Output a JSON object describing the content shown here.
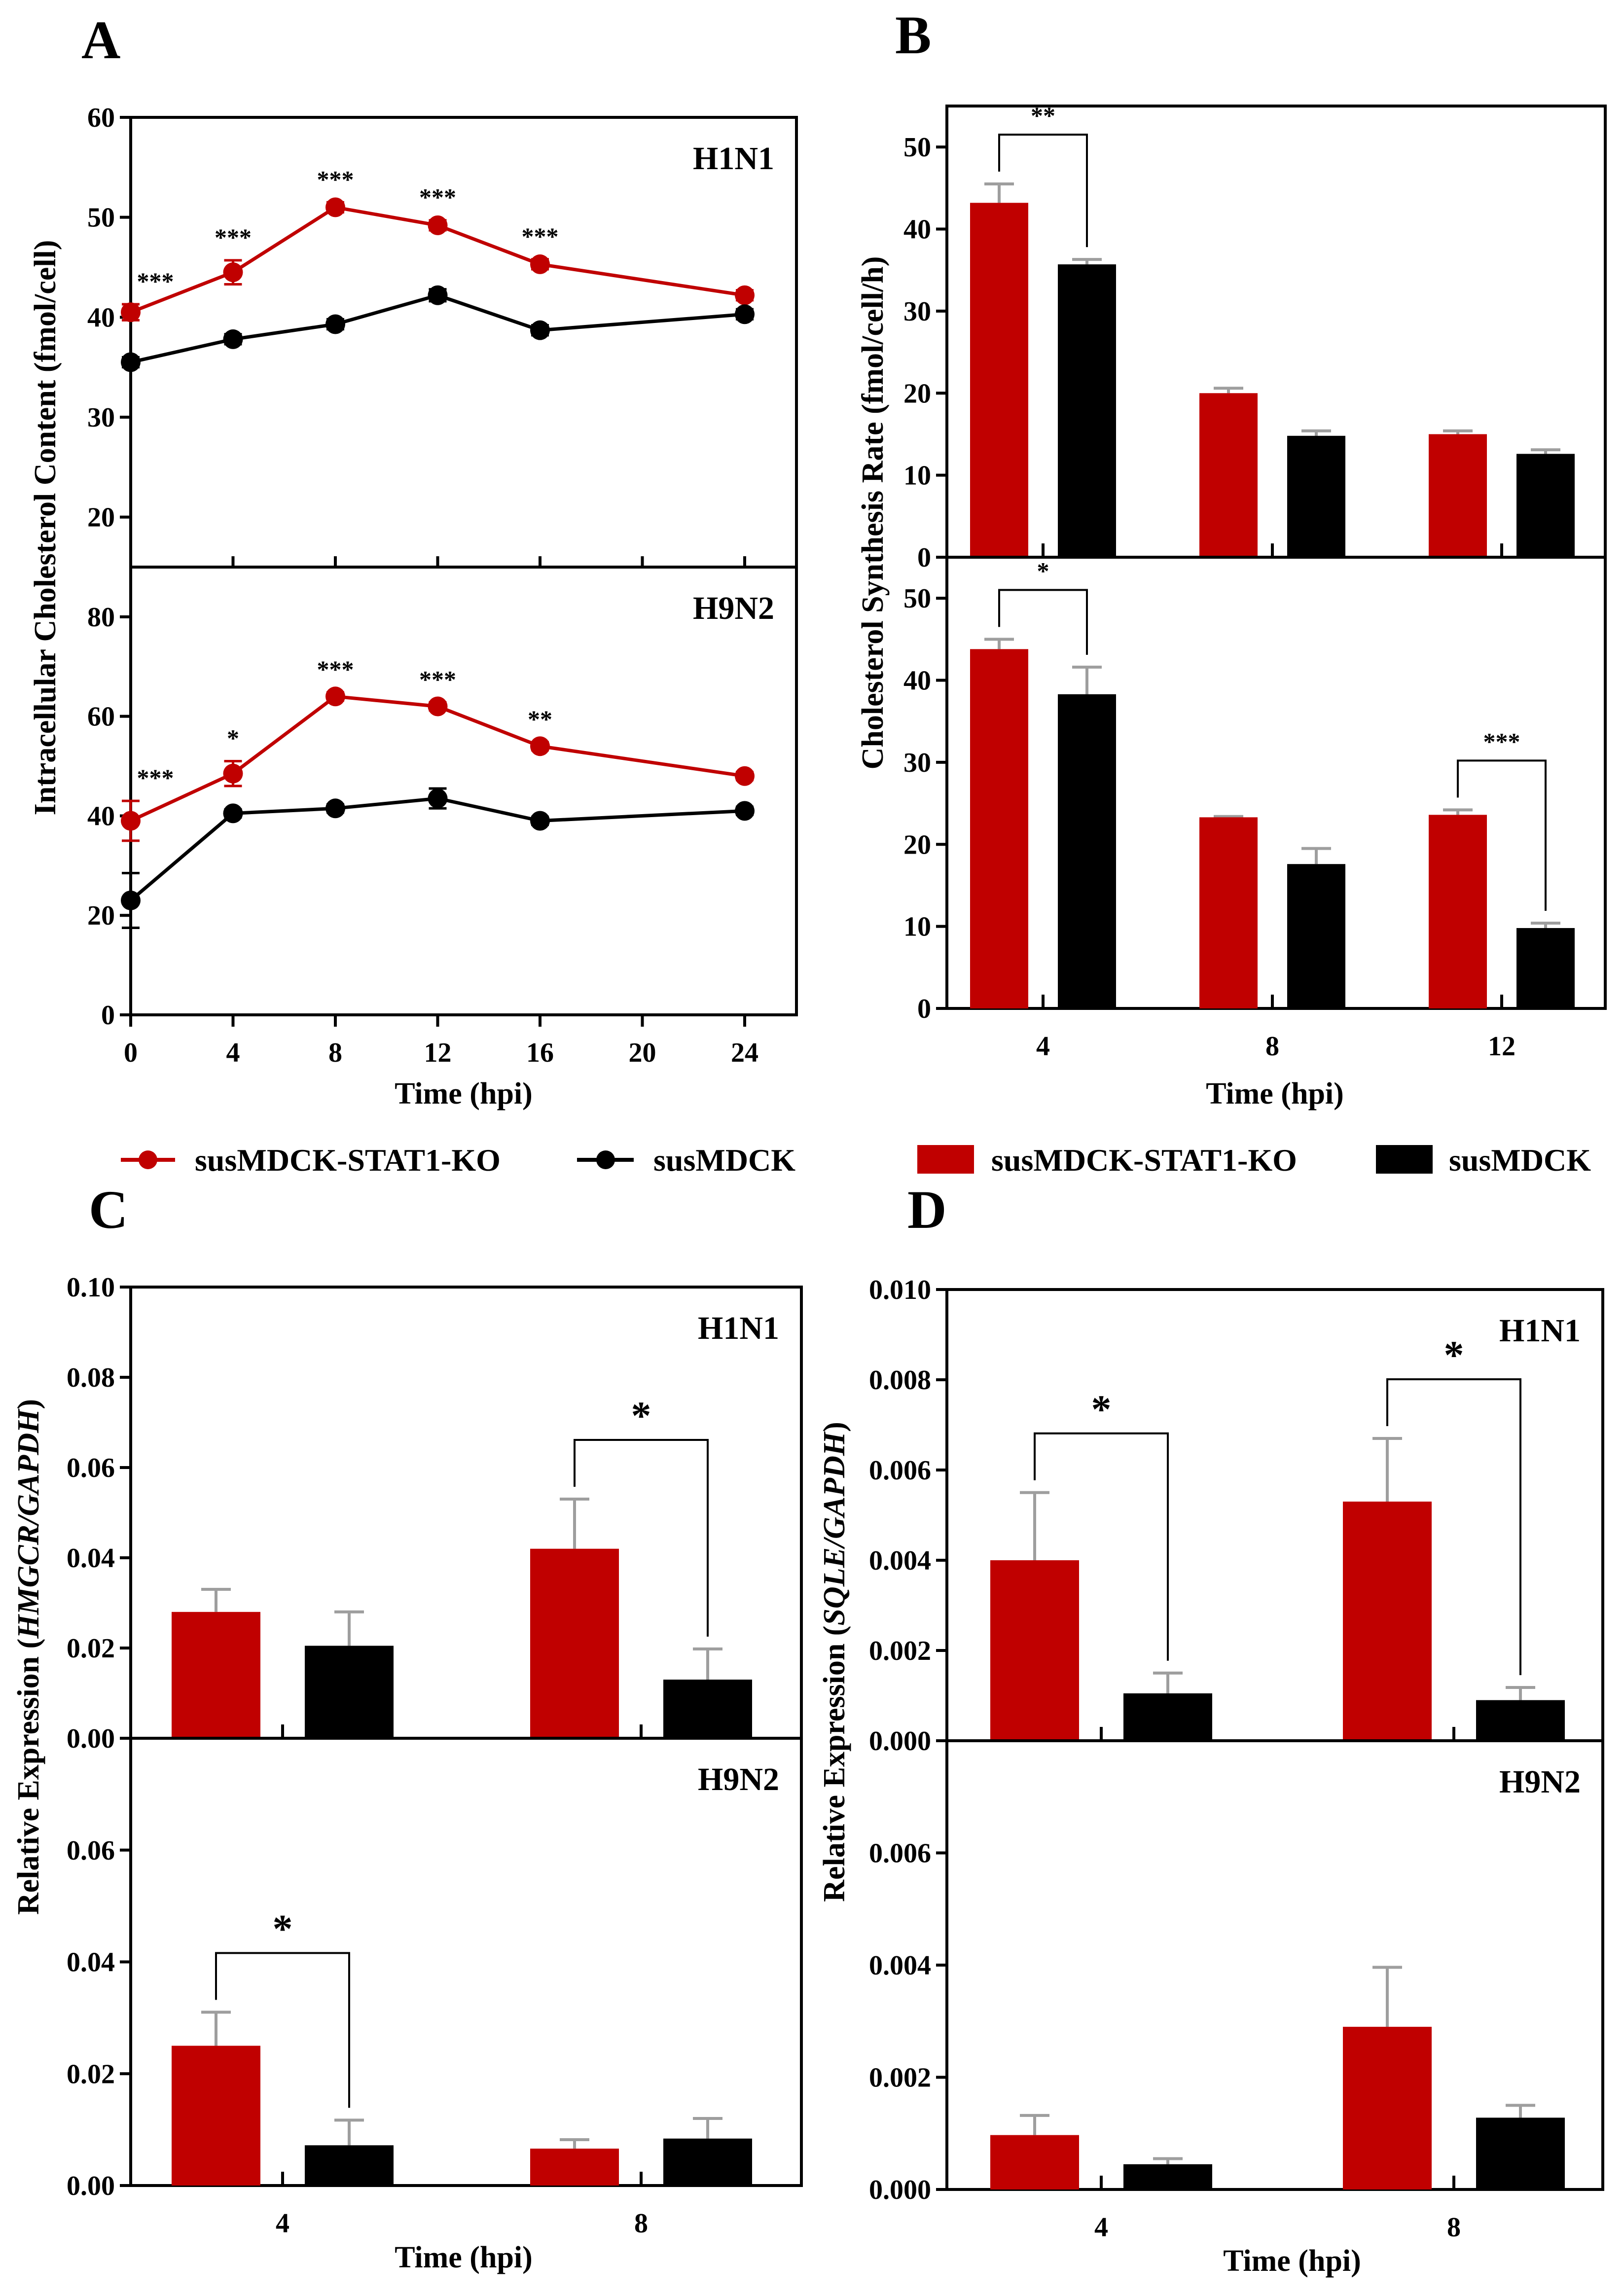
{
  "colors": {
    "ko": "#c00000",
    "wt": "#000000",
    "err": "#9e9e9e"
  },
  "legend_line": {
    "ko": "susMDCK-STAT1-KO",
    "wt": "susMDCK"
  },
  "legend_bar": {
    "ko": "susMDCK-STAT1-KO",
    "wt": "susMDCK"
  },
  "chart_data": [
    {
      "id": "A",
      "panel_label": "A",
      "type": "line",
      "ylabel": "Intracellular Cholesterol Content (fmol/cell)",
      "xlabel": "Time (hpi)",
      "xticks": [
        "0",
        "4",
        "8",
        "12",
        "16",
        "20",
        "24"
      ],
      "subplots": [
        {
          "infection": "H1N1",
          "ylim": [
            15,
            60
          ],
          "yticks": [
            "20",
            "30",
            "40",
            "50",
            "60"
          ],
          "x": [
            0,
            4,
            8,
            12,
            16,
            24
          ],
          "series": [
            {
              "name": "susMDCK-STAT1-KO",
              "values": [
                40.5,
                44.5,
                51,
                49.2,
                45.3,
                42.2
              ],
              "errors": [
                0.8,
                1.2,
                0.5,
                0.5,
                0.5,
                0.5
              ]
            },
            {
              "name": "susMDCK",
              "values": [
                35.5,
                37.8,
                39.3,
                42.2,
                38.7,
                40.3
              ],
              "errors": [
                0.5,
                0.5,
                0.5,
                0.6,
                0.5,
                0.5
              ]
            }
          ],
          "annotations": [
            "***",
            "***",
            "***",
            "***",
            "***"
          ],
          "annotation_x": [
            0,
            4,
            8,
            12,
            16
          ]
        },
        {
          "infection": "H9N2",
          "ylim": [
            0,
            90
          ],
          "yticks": [
            "0",
            "20",
            "40",
            "60",
            "80"
          ],
          "x": [
            0,
            4,
            8,
            12,
            16,
            24
          ],
          "series": [
            {
              "name": "susMDCK-STAT1-KO",
              "values": [
                39,
                48.5,
                64,
                62,
                54,
                48
              ],
              "errors": [
                4,
                2.5,
                0.8,
                0.8,
                0.8,
                0.8
              ]
            },
            {
              "name": "susMDCK",
              "values": [
                23,
                40.5,
                41.5,
                43.5,
                39,
                41
              ],
              "errors": [
                5.5,
                0.8,
                0.8,
                2,
                0.8,
                0.8
              ]
            }
          ],
          "annotations": [
            "***",
            "*",
            "***",
            "***",
            "**"
          ],
          "annotation_x": [
            0,
            4,
            8,
            12,
            16
          ]
        }
      ]
    },
    {
      "id": "B",
      "panel_label": "B",
      "type": "bar",
      "ylabel": "Cholesterol Synthesis Rate (fmol/cell/h)",
      "xlabel": "Time (hpi)",
      "categories": [
        "4",
        "8",
        "12"
      ],
      "subplots": [
        {
          "ylim": [
            0,
            55
          ],
          "yticks": [
            "0",
            "10",
            "20",
            "30",
            "40",
            "50"
          ],
          "series": [
            {
              "name": "susMDCK-STAT1-KO",
              "values": [
                43.2,
                20,
                15
              ],
              "errors": [
                2.3,
                0.6,
                0.4
              ]
            },
            {
              "name": "susMDCK",
              "values": [
                35.7,
                14.8,
                12.6
              ],
              "errors": [
                0.6,
                0.6,
                0.5
              ]
            }
          ],
          "brackets": [
            {
              "category": 0,
              "label": "**"
            }
          ]
        },
        {
          "ylim": [
            0,
            55
          ],
          "yticks": [
            "0",
            "10",
            "20",
            "30",
            "40",
            "50"
          ],
          "series": [
            {
              "name": "susMDCK-STAT1-KO",
              "values": [
                43.8,
                23.3,
                23.6
              ],
              "errors": [
                1.2,
                0.1,
                0.6
              ]
            },
            {
              "name": "susMDCK",
              "values": [
                38.3,
                17.6,
                9.8
              ],
              "errors": [
                3.3,
                1.9,
                0.6
              ]
            }
          ],
          "brackets": [
            {
              "category": 0,
              "label": "*"
            },
            {
              "category": 2,
              "label": "***"
            }
          ]
        }
      ]
    },
    {
      "id": "C",
      "panel_label": "C",
      "type": "bar",
      "ylabel_prefix": "Relative Expression (",
      "ylabel_gene": "HMGCR/GAPDH",
      "ylabel_suffix": ")",
      "xlabel": "Time (hpi)",
      "categories": [
        "4",
        "8"
      ],
      "subplots": [
        {
          "infection": "H1N1",
          "ylim": [
            0,
            0.1
          ],
          "yticks": [
            "0.00",
            "0.02",
            "0.04",
            "0.06",
            "0.08",
            "0.10"
          ],
          "series": [
            {
              "name": "susMDCK-STAT1-KO",
              "values": [
                0.028,
                0.042
              ],
              "errors": [
                0.005,
                0.011
              ]
            },
            {
              "name": "susMDCK",
              "values": [
                0.0205,
                0.013
              ],
              "errors": [
                0.0075,
                0.0068
              ]
            }
          ],
          "brackets": [
            {
              "category": 1,
              "label": "*"
            }
          ]
        },
        {
          "infection": "H9N2",
          "ylim": [
            0,
            0.08
          ],
          "yticks": [
            "0.00",
            "0.02",
            "0.04",
            "0.06"
          ],
          "series": [
            {
              "name": "susMDCK-STAT1-KO",
              "values": [
                0.025,
                0.0066
              ],
              "errors": [
                0.006,
                0.0016
              ]
            },
            {
              "name": "susMDCK",
              "values": [
                0.0072,
                0.0084
              ],
              "errors": [
                0.0045,
                0.0036
              ]
            }
          ],
          "brackets": [
            {
              "category": 0,
              "label": "*"
            }
          ]
        }
      ]
    },
    {
      "id": "D",
      "panel_label": "D",
      "type": "bar",
      "ylabel_prefix": "Relative Expression (",
      "ylabel_gene": "SQLE/GAPDH",
      "ylabel_suffix": ")",
      "xlabel": "Time (hpi)",
      "categories": [
        "4",
        "8"
      ],
      "subplots": [
        {
          "infection": "H1N1",
          "ylim": [
            0,
            0.01
          ],
          "yticks": [
            "0.000",
            "0.002",
            "0.004",
            "0.006",
            "0.008",
            "0.010"
          ],
          "series": [
            {
              "name": "susMDCK-STAT1-KO",
              "values": [
                0.004,
                0.0053
              ],
              "errors": [
                0.0015,
                0.0014
              ]
            },
            {
              "name": "susMDCK",
              "values": [
                0.00105,
                0.0009
              ],
              "errors": [
                0.00045,
                0.00028
              ]
            }
          ],
          "brackets": [
            {
              "category": 0,
              "label": "*"
            },
            {
              "category": 1,
              "label": "*"
            }
          ]
        },
        {
          "infection": "H9N2",
          "ylim": [
            0,
            0.008
          ],
          "yticks": [
            "0.000",
            "0.002",
            "0.004",
            "0.006"
          ],
          "series": [
            {
              "name": "susMDCK-STAT1-KO",
              "values": [
                0.00097,
                0.0029
              ],
              "errors": [
                0.00035,
                0.00106
              ]
            },
            {
              "name": "susMDCK",
              "values": [
                0.00045,
                0.00128
              ],
              "errors": [
                0.0001,
                0.00022
              ]
            }
          ],
          "brackets": []
        }
      ]
    }
  ]
}
